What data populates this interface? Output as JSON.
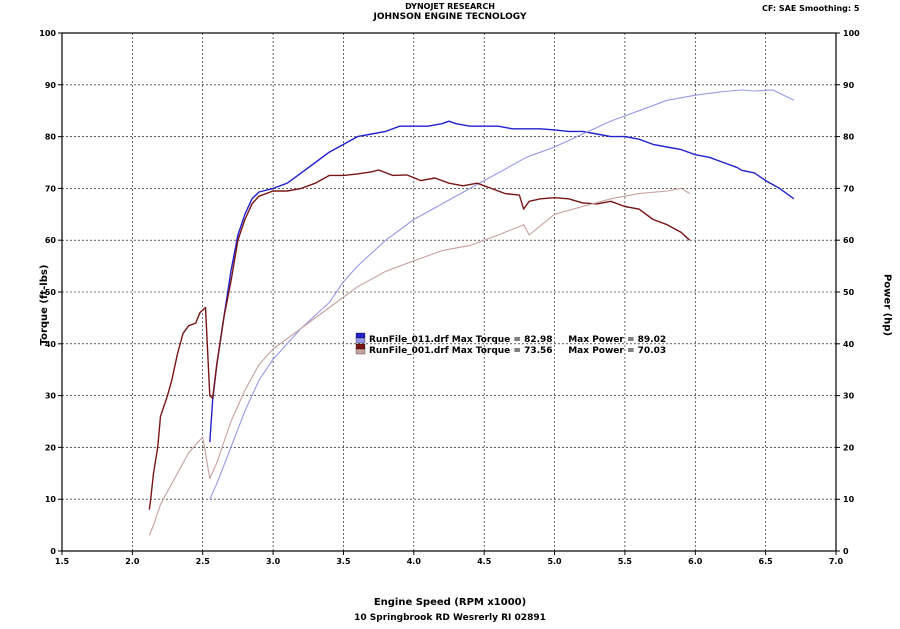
{
  "header": {
    "title_line1": "DYNOJET RESEARCH",
    "title_line2": "JOHNSON ENGINE TECNOLOGY",
    "cf_info": "CF: SAE  Smoothing: 5"
  },
  "footer": {
    "address": "10 Springbrook RD Wesrerly RI 02891"
  },
  "colors": {
    "torque_011": "#2222cc",
    "power_011": "#9898e8",
    "torque_001": "#7a1515",
    "power_001": "#c8a0a0",
    "grid": "#000000",
    "background": "#ffffff"
  },
  "chart_data": {
    "type": "line",
    "title": "JOHNSON ENGINE TECNOLOGY",
    "xlabel": "Engine Speed (RPM x1000)",
    "ylabel": "Torque (ft-lbs)",
    "ylabel_right": "Power (hp)",
    "xlim": [
      1.5,
      7.0
    ],
    "ylim": [
      0,
      100
    ],
    "ylim_right": [
      0,
      100
    ],
    "grid": true,
    "x_ticks": [
      "1.5",
      "2.0",
      "2.5",
      "3.0",
      "3.5",
      "4.0",
      "4.5",
      "5.0",
      "5.5",
      "6.0",
      "6.5",
      "7.0"
    ],
    "y_ticks": [
      "0",
      "10",
      "20",
      "30",
      "40",
      "50",
      "60",
      "70",
      "80",
      "90",
      "100"
    ],
    "legend": [
      {
        "text": "RunFile_011.drf Max Torque = 82.98     Max Power = 89.02",
        "color_top": "#2222cc",
        "color_bottom": "#9898e8"
      },
      {
        "text": "RunFile_001.drf Max Torque = 73.56     Max Power = 70.03",
        "color_top": "#7a1515",
        "color_bottom": "#c8a0a0"
      }
    ],
    "series": [
      {
        "name": "RunFile_011.drf Torque",
        "axis": "left",
        "color": "#2222cc",
        "points": [
          [
            2.55,
            21
          ],
          [
            2.57,
            29
          ],
          [
            2.6,
            36
          ],
          [
            2.65,
            45
          ],
          [
            2.7,
            54
          ],
          [
            2.75,
            61
          ],
          [
            2.8,
            65
          ],
          [
            2.85,
            68
          ],
          [
            2.9,
            69.3
          ],
          [
            3.0,
            70
          ],
          [
            3.1,
            71
          ],
          [
            3.2,
            73
          ],
          [
            3.3,
            75
          ],
          [
            3.4,
            77
          ],
          [
            3.5,
            78.5
          ],
          [
            3.6,
            80
          ],
          [
            3.7,
            80.5
          ],
          [
            3.8,
            81
          ],
          [
            3.9,
            82
          ],
          [
            4.0,
            82
          ],
          [
            4.1,
            82
          ],
          [
            4.2,
            82.5
          ],
          [
            4.25,
            82.98
          ],
          [
            4.3,
            82.5
          ],
          [
            4.4,
            82
          ],
          [
            4.5,
            82
          ],
          [
            4.6,
            82
          ],
          [
            4.7,
            81.5
          ],
          [
            4.8,
            81.5
          ],
          [
            4.9,
            81.5
          ],
          [
            5.0,
            81.3
          ],
          [
            5.1,
            81
          ],
          [
            5.2,
            81
          ],
          [
            5.3,
            80.5
          ],
          [
            5.4,
            80
          ],
          [
            5.5,
            80
          ],
          [
            5.6,
            79.5
          ],
          [
            5.7,
            78.5
          ],
          [
            5.8,
            78
          ],
          [
            5.9,
            77.5
          ],
          [
            6.0,
            76.5
          ],
          [
            6.1,
            76
          ],
          [
            6.2,
            75
          ],
          [
            6.3,
            74
          ],
          [
            6.33,
            73.5
          ],
          [
            6.42,
            73
          ],
          [
            6.5,
            71.5
          ],
          [
            6.6,
            70
          ],
          [
            6.7,
            68
          ]
        ]
      },
      {
        "name": "RunFile_011.drf Power",
        "axis": "right",
        "color": "#9898e8",
        "points": [
          [
            2.55,
            10
          ],
          [
            2.6,
            13
          ],
          [
            2.7,
            20
          ],
          [
            2.8,
            27
          ],
          [
            2.9,
            33
          ],
          [
            3.0,
            37
          ],
          [
            3.2,
            43
          ],
          [
            3.4,
            48
          ],
          [
            3.5,
            52
          ],
          [
            3.6,
            55
          ],
          [
            3.8,
            60
          ],
          [
            4.0,
            64
          ],
          [
            4.2,
            67
          ],
          [
            4.4,
            70
          ],
          [
            4.6,
            73
          ],
          [
            4.8,
            76
          ],
          [
            5.0,
            78
          ],
          [
            5.2,
            80.5
          ],
          [
            5.4,
            83
          ],
          [
            5.6,
            85
          ],
          [
            5.8,
            87
          ],
          [
            6.0,
            88
          ],
          [
            6.2,
            88.7
          ],
          [
            6.33,
            89
          ],
          [
            6.42,
            88.8
          ],
          [
            6.55,
            89.02
          ],
          [
            6.7,
            87
          ]
        ]
      },
      {
        "name": "RunFile_001.drf Torque",
        "axis": "left",
        "color": "#7a1515",
        "points": [
          [
            2.12,
            8
          ],
          [
            2.13,
            10
          ],
          [
            2.15,
            15
          ],
          [
            2.18,
            20
          ],
          [
            2.2,
            26
          ],
          [
            2.25,
            30
          ],
          [
            2.28,
            33
          ],
          [
            2.32,
            38
          ],
          [
            2.36,
            42
          ],
          [
            2.4,
            43.5
          ],
          [
            2.45,
            44
          ],
          [
            2.48,
            46
          ],
          [
            2.52,
            47
          ],
          [
            2.55,
            30
          ],
          [
            2.57,
            29.5
          ],
          [
            2.6,
            36
          ],
          [
            2.65,
            45
          ],
          [
            2.7,
            52
          ],
          [
            2.75,
            60
          ],
          [
            2.8,
            64
          ],
          [
            2.85,
            67
          ],
          [
            2.9,
            68.5
          ],
          [
            3.0,
            69.5
          ],
          [
            3.1,
            69.5
          ],
          [
            3.2,
            70
          ],
          [
            3.3,
            71
          ],
          [
            3.4,
            72.5
          ],
          [
            3.5,
            72.5
          ],
          [
            3.6,
            72.8
          ],
          [
            3.7,
            73.2
          ],
          [
            3.75,
            73.56
          ],
          [
            3.85,
            72.5
          ],
          [
            3.95,
            72.6
          ],
          [
            4.05,
            71.5
          ],
          [
            4.15,
            72
          ],
          [
            4.25,
            71
          ],
          [
            4.35,
            70.5
          ],
          [
            4.45,
            71
          ],
          [
            4.55,
            70
          ],
          [
            4.65,
            69
          ],
          [
            4.75,
            68.7
          ],
          [
            4.78,
            66
          ],
          [
            4.82,
            67.5
          ],
          [
            4.9,
            68
          ],
          [
            5.0,
            68.2
          ],
          [
            5.1,
            68
          ],
          [
            5.2,
            67.2
          ],
          [
            5.3,
            67
          ],
          [
            5.4,
            67.5
          ],
          [
            5.5,
            66.5
          ],
          [
            5.6,
            66
          ],
          [
            5.7,
            64
          ],
          [
            5.8,
            63
          ],
          [
            5.9,
            61.5
          ],
          [
            5.96,
            60
          ]
        ]
      },
      {
        "name": "RunFile_001.drf Power",
        "axis": "right",
        "color": "#c8a0a0",
        "points": [
          [
            2.12,
            3
          ],
          [
            2.15,
            5
          ],
          [
            2.2,
            9
          ],
          [
            2.3,
            14
          ],
          [
            2.4,
            19
          ],
          [
            2.5,
            22
          ],
          [
            2.55,
            14
          ],
          [
            2.6,
            17
          ],
          [
            2.7,
            25
          ],
          [
            2.8,
            31
          ],
          [
            2.9,
            36
          ],
          [
            3.0,
            39
          ],
          [
            3.2,
            43
          ],
          [
            3.4,
            47
          ],
          [
            3.6,
            51
          ],
          [
            3.8,
            54
          ],
          [
            4.0,
            56
          ],
          [
            4.2,
            58
          ],
          [
            4.4,
            59
          ],
          [
            4.6,
            61
          ],
          [
            4.78,
            63
          ],
          [
            4.82,
            61
          ],
          [
            5.0,
            65
          ],
          [
            5.2,
            66.5
          ],
          [
            5.4,
            68
          ],
          [
            5.6,
            69
          ],
          [
            5.8,
            69.5
          ],
          [
            5.9,
            70.03
          ],
          [
            5.96,
            69
          ]
        ]
      }
    ]
  }
}
